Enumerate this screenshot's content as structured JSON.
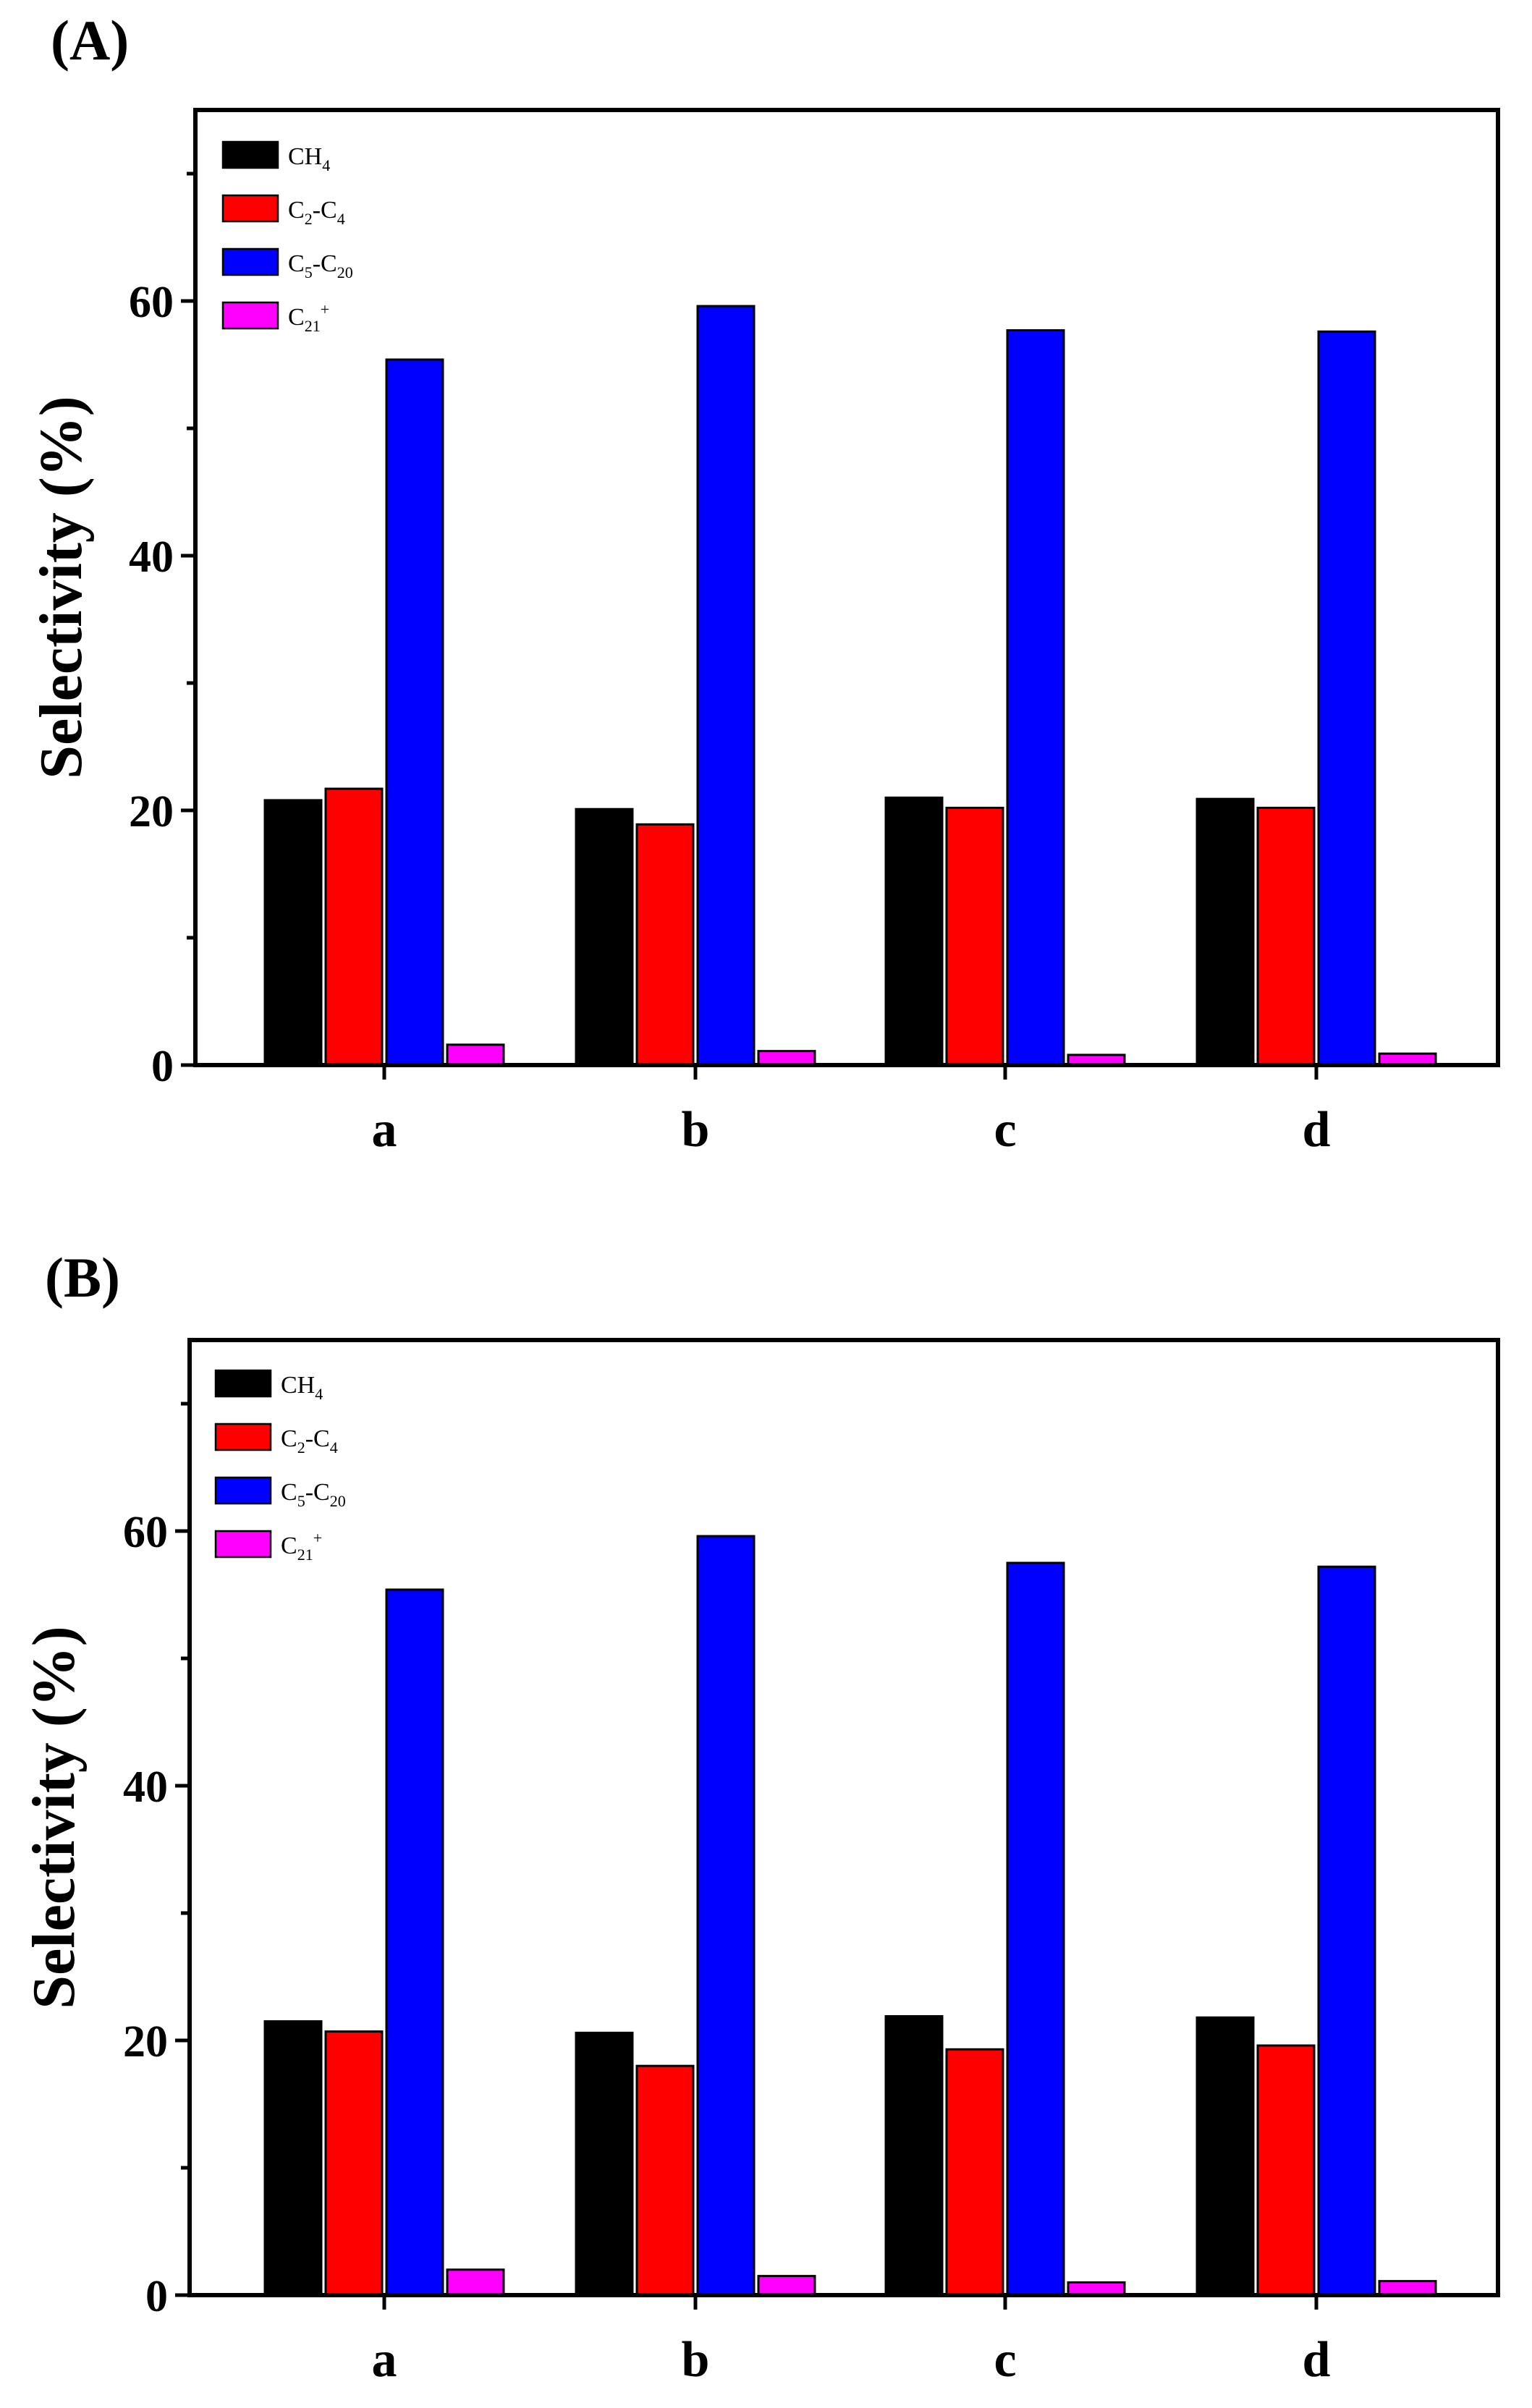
{
  "chart_data": [
    {
      "panel_label": "(A)",
      "type": "bar",
      "categories": [
        "a",
        "b",
        "c",
        "d"
      ],
      "series": [
        {
          "name": "CH4",
          "legend": {
            "base": "CH",
            "sub": "4",
            "mid": "",
            "base2": "",
            "sub2": "",
            "sup": ""
          },
          "color": "#000000",
          "values": [
            20.8,
            20.1,
            21.0,
            20.9
          ]
        },
        {
          "name": "C2-C4",
          "legend": {
            "base": "C",
            "sub": "2",
            "mid": "-C",
            "base2": "",
            "sub2": "4",
            "sup": ""
          },
          "color": "#ff0000",
          "values": [
            21.7,
            18.9,
            20.2,
            20.2
          ]
        },
        {
          "name": "C5-C20",
          "legend": {
            "base": "C",
            "sub": "5",
            "mid": "-C",
            "base2": "",
            "sub2": "20",
            "sup": ""
          },
          "color": "#0000ff",
          "values": [
            55.4,
            59.6,
            57.7,
            57.6
          ]
        },
        {
          "name": "C21+",
          "legend": {
            "base": "C",
            "sub": "21",
            "mid": "",
            "base2": "",
            "sub2": "",
            "sup": "+"
          },
          "color": "#ff00ff",
          "values": [
            1.6,
            1.1,
            0.8,
            0.9
          ]
        }
      ],
      "ylabel": "Selectivity (%)",
      "xlabel": "",
      "ylim": [
        0,
        75
      ],
      "yticks": [
        "0",
        "20",
        "40",
        "60"
      ],
      "legend_position": "top-left"
    },
    {
      "panel_label": "(B)",
      "type": "bar",
      "categories": [
        "a",
        "b",
        "c",
        "d"
      ],
      "series": [
        {
          "name": "CH4",
          "legend": {
            "base": "CH",
            "sub": "4",
            "mid": "",
            "base2": "",
            "sub2": "",
            "sup": ""
          },
          "color": "#000000",
          "values": [
            21.5,
            20.6,
            21.9,
            21.8
          ]
        },
        {
          "name": "C2-C4",
          "legend": {
            "base": "C",
            "sub": "2",
            "mid": "-C",
            "base2": "",
            "sub2": "4",
            "sup": ""
          },
          "color": "#ff0000",
          "values": [
            20.7,
            18.0,
            19.3,
            19.6
          ]
        },
        {
          "name": "C5-C20",
          "legend": {
            "base": "C",
            "sub": "5",
            "mid": "-C",
            "base2": "",
            "sub2": "20",
            "sup": ""
          },
          "color": "#0000ff",
          "values": [
            55.4,
            59.6,
            57.5,
            57.2
          ]
        },
        {
          "name": "C21+",
          "legend": {
            "base": "C",
            "sub": "21",
            "mid": "",
            "base2": "",
            "sub2": "",
            "sup": "+"
          },
          "color": "#ff00ff",
          "values": [
            2.0,
            1.5,
            1.0,
            1.1
          ]
        }
      ],
      "ylabel": "Selectivity (%)",
      "xlabel": "",
      "ylim": [
        0,
        75
      ],
      "yticks": [
        "0",
        "20",
        "40",
        "60"
      ],
      "legend_position": "top-left"
    }
  ]
}
